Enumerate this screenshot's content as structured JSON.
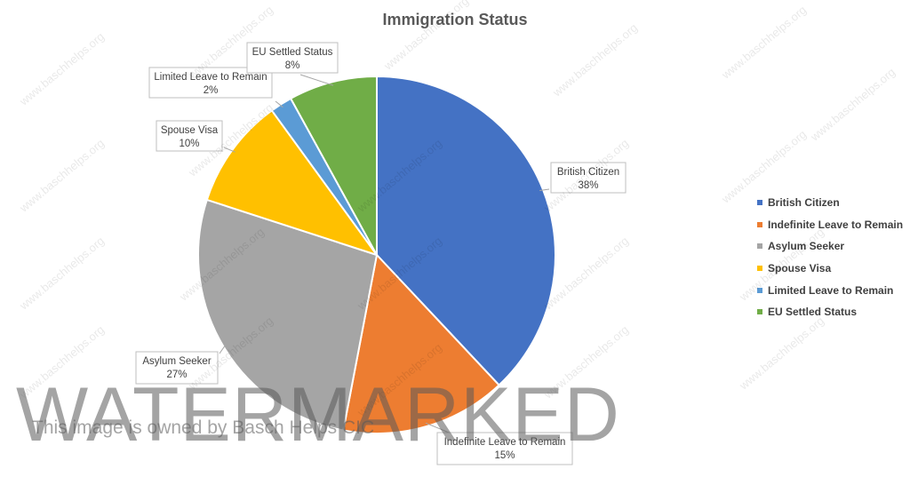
{
  "chart_data": {
    "type": "pie",
    "title": "Immigration Status",
    "categories": [
      "British Citizen",
      "Indefinite Leave to Remain",
      "Asylum Seeker",
      "Spouse Visa",
      "Limited Leave to Remain",
      "EU Settled Status"
    ],
    "values": [
      38,
      15,
      27,
      10,
      2,
      8
    ],
    "data_labels": [
      "38%",
      "15%",
      "27%",
      "10%",
      "2%",
      "8%"
    ],
    "colors": [
      "#4472C4",
      "#ED7D31",
      "#A5A5A5",
      "#FFC000",
      "#5B9BD5",
      "#70AD47"
    ],
    "legend_position": "right"
  },
  "watermark": {
    "big_text": "WATERMARKED",
    "owner_text": "This image is owned by Basch Helps CIC",
    "repeat_text": "www.baschhelps.org"
  }
}
